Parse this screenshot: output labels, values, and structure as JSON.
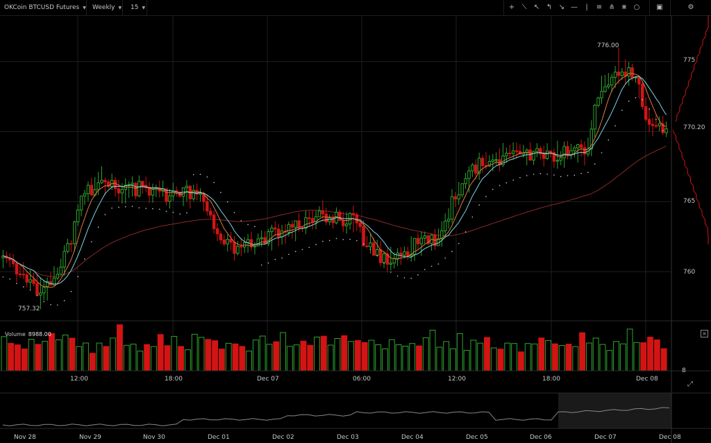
{
  "toolbar": {
    "symbol": "OKCoin BTCUSD Futures",
    "contract": "Weekly",
    "interval": "15",
    "tools": [
      "crosshair-icon",
      "trendline-icon",
      "ray-icon",
      "path-icon",
      "arrow-icon",
      "horizontal-line-icon",
      "vertical-line-icon",
      "fib-icon",
      "pitchfork-icon",
      "gann-icon",
      "circle-icon"
    ],
    "indicator_button": "indicator-icon",
    "settings_button": "gear-icon"
  },
  "price_axis": {
    "ticks": [
      "775",
      "770.20",
      "765",
      "760"
    ],
    "min": 756.5,
    "max": 778.3
  },
  "annotations": {
    "high_label": "776.00",
    "low_label": "757.32",
    "last_price": "770.20"
  },
  "volume": {
    "label": "Volume",
    "value": "8988.00",
    "axis_tick": "8"
  },
  "time_axis": [
    "12:00",
    "18:00",
    "Dec 07",
    "06:00",
    "12:00",
    "18:00",
    "Dec 08"
  ],
  "navigator_axis": [
    "Nov 28",
    "Nov 29",
    "Nov 30",
    "Dec 01",
    "Dec 02",
    "Dec 03",
    "Dec 04",
    "Dec 05",
    "Dec 06",
    "Dec 07",
    "Dec 08"
  ],
  "colors": {
    "up": "#2ea62e",
    "down": "#d31414",
    "ma_fast": "#e07a3c",
    "ma_mid": "#7fd8e8",
    "ma_slow": "#8a2a2a",
    "sar": "#cfcfcf",
    "grid": "#1f1f1f"
  },
  "chart_data": {
    "type": "candlestick",
    "title": "OKCoin BTCUSD Futures",
    "interval_minutes": 15,
    "ylim": [
      756.5,
      778.3
    ],
    "grid": true,
    "key_points": [
      {
        "x": "session start",
        "price": 761.0
      },
      {
        "x": "low",
        "price": 757.32
      },
      {
        "x": "12:00",
        "price": 766.5
      },
      {
        "x": "18:00",
        "price": 765.5
      },
      {
        "x": "Dec 07",
        "price": 762.0
      },
      {
        "x": "06:00",
        "price": 764.0
      },
      {
        "x": "06:00+",
        "price": 760.5
      },
      {
        "x": "12:00",
        "price": 762.5
      },
      {
        "x": "18:00",
        "price": 768.3
      },
      {
        "x": "high",
        "price": 776.0
      },
      {
        "x": "Dec 08",
        "price": 770.2
      }
    ],
    "last_price": 770.2,
    "volume_last": 8988.0
  }
}
